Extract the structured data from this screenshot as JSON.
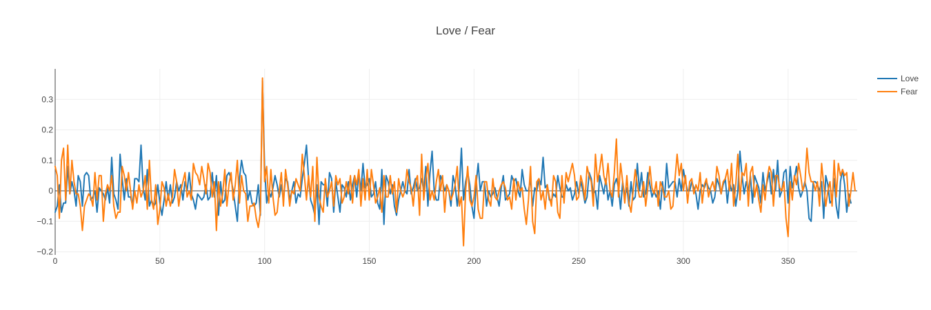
{
  "chart_data": {
    "type": "line",
    "title": "Love / Fear",
    "xlabel": "",
    "ylabel": "",
    "xlim": [
      0,
      383
    ],
    "ylim": [
      -0.21,
      0.4
    ],
    "x_ticks": [
      0,
      50,
      100,
      150,
      200,
      250,
      300,
      350
    ],
    "y_ticks": [
      -0.2,
      -0.1,
      0,
      0.1,
      0.2,
      0.3
    ],
    "y_tick_labels": [
      "−0.2",
      "−0.1",
      "0",
      "0.1",
      "0.2",
      "0.3"
    ],
    "grid": true,
    "legend_position": "top-right",
    "series": [
      {
        "name": "Love",
        "color": "#1f77b4",
        "x_start": 0,
        "x_step": 1,
        "values": [
          -0.07,
          -0.05,
          0.02,
          -0.07,
          -0.04,
          -0.04,
          0.08,
          -0.01,
          0.03,
          0.0,
          -0.05,
          0.05,
          0.03,
          -0.05,
          0.05,
          0.06,
          0.05,
          -0.03,
          -0.02,
          0.0,
          -0.07,
          0.01,
          0.0,
          -0.01,
          -0.03,
          0.01,
          -0.04,
          0.11,
          -0.01,
          -0.03,
          -0.06,
          0.12,
          0.04,
          -0.03,
          0.04,
          -0.02,
          -0.02,
          -0.05,
          0.04,
          0.04,
          0.03,
          0.15,
          0.01,
          -0.03,
          0.07,
          -0.05,
          -0.03,
          -0.05,
          -0.04,
          0.02,
          -0.04,
          -0.08,
          -0.03,
          0.03,
          -0.03,
          0.02,
          -0.04,
          -0.02,
          0.03,
          0.0,
          0.02,
          -0.03,
          0.03,
          0.0,
          0.06,
          -0.01,
          -0.03,
          -0.06,
          -0.01,
          -0.02,
          -0.03,
          -0.02,
          0.02,
          -0.03,
          -0.02,
          0.06,
          -0.02,
          0.05,
          -0.08,
          0.03,
          -0.04,
          -0.03,
          0.05,
          0.06,
          0.04,
          0.0,
          -0.05,
          -0.1,
          0.04,
          0.1,
          0.06,
          0.05,
          -0.03,
          0.0,
          -0.04,
          -0.05,
          -0.04,
          0.02,
          -0.08,
          0.36,
          0.08,
          -0.04,
          0.0,
          -0.02,
          0.01,
          0.05,
          0.02,
          -0.02,
          0.02,
          -0.03,
          0.04,
          0.03,
          -0.03,
          0.0,
          0.03,
          -0.04,
          -0.01,
          -0.02,
          0.04,
          0.09,
          0.15,
          0.04,
          -0.03,
          -0.05,
          -0.08,
          0.02,
          -0.11,
          0.03,
          0.02,
          0.02,
          -0.05,
          0.06,
          0.04,
          -0.07,
          0.03,
          -0.02,
          -0.07,
          0.02,
          0.01,
          -0.02,
          0.03,
          -0.03,
          0.02,
          0.05,
          -0.02,
          0.06,
          0.0,
          0.09,
          0.01,
          0.02,
          0.04,
          -0.02,
          -0.01,
          0.03,
          -0.04,
          -0.06,
          0.07,
          -0.11,
          0.05,
          0.03,
          -0.01,
          0.02,
          -0.05,
          -0.08,
          -0.03,
          0.0,
          0.03,
          0.0,
          -0.01,
          0.07,
          -0.01,
          0.01,
          0.04,
          0.0,
          0.01,
          0.04,
          0.0,
          0.08,
          -0.05,
          0.06,
          0.13,
          0.0,
          -0.03,
          -0.03,
          0.05,
          0.03,
          0.0,
          0.02,
          0.0,
          -0.05,
          0.05,
          0.02,
          -0.05,
          0.01,
          0.14,
          -0.03,
          0.03,
          0.06,
          0.02,
          -0.05,
          -0.09,
          0.02,
          0.09,
          0.0,
          0.03,
          0.03,
          -0.05,
          0.0,
          -0.02,
          -0.01,
          0.01,
          -0.02,
          -0.05,
          0.01,
          0.05,
          -0.03,
          -0.02,
          -0.01,
          0.05,
          0.03,
          0.04,
          0.0,
          -0.02,
          0.07,
          0.02,
          0.0,
          0.0,
          0.04,
          -0.05,
          0.01,
          0.0,
          0.04,
          0.02,
          0.11,
          0.01,
          0.02,
          -0.03,
          -0.03,
          -0.01,
          -0.02,
          0.05,
          0.01,
          -0.02,
          -0.02,
          0.02,
          0.0,
          0.01,
          -0.03,
          -0.01,
          0.03,
          -0.01,
          0.03,
          0.0,
          -0.04,
          -0.02,
          0.06,
          0.04,
          -0.01,
          0.0,
          -0.06,
          0.05,
          0.02,
          -0.01,
          0.04,
          -0.03,
          0.0,
          -0.05,
          0.02,
          0.04,
          0.01,
          -0.06,
          0.03,
          -0.02,
          0.01,
          -0.05,
          0.03,
          -0.03,
          -0.02,
          0.09,
          0.0,
          0.06,
          -0.02,
          -0.01,
          0.06,
          0.02,
          -0.02,
          0.0,
          -0.02,
          0.0,
          -0.06,
          0.03,
          -0.03,
          0.09,
          0.01,
          0.02,
          0.03,
          0.03,
          -0.02,
          0.04,
          0.0,
          0.07,
          0.03,
          0.0,
          0.0,
          0.03,
          0.01,
          -0.01,
          -0.06,
          0.0,
          0.02,
          0.01,
          0.03,
          0.01,
          0.0,
          -0.04,
          -0.02,
          0.04,
          0.02,
          -0.01,
          0.02,
          0.04,
          -0.04,
          0.03,
          0.0,
          0.02,
          -0.05,
          0.0,
          0.13,
          0.05,
          -0.01,
          0.03,
          0.0,
          0.05,
          -0.04,
          0.05,
          0.03,
          0.01,
          -0.04,
          0.06,
          0.0,
          0.03,
          0.06,
          -0.01,
          0.07,
          0.0,
          0.1,
          -0.02,
          0.0,
          0.06,
          0.07,
          -0.04,
          0.08,
          0.01,
          0.04,
          0.08,
          0.01,
          -0.02,
          0.0,
          0.03,
          0.0,
          -0.09,
          -0.1,
          0.03,
          0.03,
          0.02,
          0.0,
          0.03,
          -0.09,
          0.05,
          0.02,
          -0.04,
          -0.03,
          0.04,
          -0.05,
          -0.09,
          0.03,
          0.07,
          0.02,
          -0.07,
          -0.01,
          -0.04
        ]
      },
      {
        "name": "Fear",
        "color": "#ff7f0e",
        "x_start": 0,
        "x_step": 1,
        "values": [
          0.08,
          0.05,
          -0.09,
          0.1,
          0.14,
          -0.03,
          0.15,
          -0.01,
          0.1,
          0.03,
          -0.01,
          -0.01,
          -0.05,
          -0.13,
          -0.05,
          -0.03,
          -0.01,
          -0.02,
          -0.05,
          0.06,
          -0.03,
          0.05,
          0.05,
          -0.1,
          -0.01,
          0.02,
          0.0,
          0.05,
          -0.05,
          -0.09,
          -0.07,
          -0.07,
          0.08,
          0.05,
          0.0,
          0.06,
          0.0,
          -0.06,
          0.0,
          -0.04,
          0.02,
          -0.02,
          0.0,
          0.05,
          -0.06,
          0.1,
          -0.03,
          -0.06,
          0.02,
          -0.11,
          -0.06,
          0.03,
          0.01,
          -0.05,
          -0.01,
          -0.05,
          -0.02,
          0.07,
          0.03,
          -0.05,
          0.0,
          0.03,
          0.06,
          -0.02,
          0.0,
          -0.03,
          0.09,
          0.06,
          0.05,
          0.02,
          0.08,
          0.04,
          -0.01,
          0.09,
          0.06,
          -0.02,
          0.03,
          -0.13,
          0.03,
          -0.05,
          -0.01,
          0.07,
          -0.05,
          0.02,
          0.06,
          -0.03,
          0.02,
          0.1,
          -0.04,
          0.05,
          0.0,
          -0.01,
          -0.1,
          -0.05,
          -0.05,
          -0.04,
          -0.09,
          -0.12,
          -0.07,
          0.37,
          0.03,
          0.08,
          -0.04,
          0.07,
          -0.02,
          -0.08,
          -0.07,
          0.0,
          0.06,
          -0.05,
          0.07,
          0.02,
          -0.05,
          0.0,
          -0.01,
          0.04,
          0.02,
          0.0,
          0.12,
          0.05,
          -0.03,
          0.05,
          -0.02,
          0.08,
          -0.1,
          0.11,
          -0.02,
          -0.05,
          -0.07,
          0.04,
          -0.02,
          0.0,
          0.03,
          -0.05,
          0.05,
          0.02,
          0.04,
          -0.04,
          -0.02,
          0.03,
          -0.01,
          0.05,
          -0.04,
          0.05,
          0.02,
          0.07,
          -0.05,
          0.04,
          -0.03,
          0.07,
          -0.03,
          0.07,
          0.02,
          -0.04,
          -0.02,
          0.01,
          -0.07,
          0.05,
          -0.02,
          -0.02,
          0.05,
          -0.01,
          0.03,
          -0.07,
          0.04,
          0.0,
          -0.02,
          0.0,
          0.07,
          0.03,
          0.01,
          -0.05,
          0.03,
          0.05,
          -0.08,
          0.12,
          -0.03,
          0.04,
          0.09,
          -0.03,
          0.0,
          -0.03,
          0.03,
          0.07,
          0.0,
          0.05,
          -0.07,
          0.02,
          0.0,
          -0.03,
          -0.01,
          0.02,
          0.08,
          -0.05,
          -0.02,
          -0.18,
          0.0,
          0.08,
          -0.03,
          -0.05,
          -0.02,
          0.05,
          -0.06,
          -0.09,
          -0.09,
          0.03,
          0.03,
          -0.03,
          -0.05,
          0.04,
          -0.02,
          -0.03,
          0.0,
          0.02,
          0.03,
          0.01,
          -0.03,
          -0.02,
          -0.06,
          0.04,
          -0.03,
          0.03,
          0.0,
          0.01,
          -0.06,
          -0.11,
          -0.03,
          0.08,
          -0.1,
          -0.14,
          0.03,
          0.04,
          -0.03,
          0.0,
          -0.06,
          0.02,
          -0.02,
          -0.05,
          0.05,
          0.03,
          -0.07,
          -0.09,
          0.05,
          -0.04,
          0.06,
          0.03,
          0.06,
          0.09,
          0.05,
          -0.03,
          -0.02,
          0.05,
          0.02,
          -0.03,
          0.08,
          0.05,
          0.03,
          -0.05,
          0.12,
          0.03,
          0.07,
          0.12,
          0.05,
          0.02,
          0.09,
          0.0,
          -0.02,
          0.06,
          0.17,
          -0.02,
          0.09,
          0.03,
          -0.04,
          0.05,
          -0.04,
          -0.07,
          0.0,
          0.07,
          0.02,
          -0.02,
          -0.02,
          0.03,
          -0.05,
          0.01,
          0.08,
          0.01,
          -0.01,
          0.03,
          -0.05,
          0.03,
          0.01,
          -0.02,
          -0.02,
          0.0,
          -0.06,
          -0.05,
          0.04,
          0.12,
          0.05,
          0.09,
          0.0,
          0.05,
          -0.04,
          0.03,
          0.04,
          -0.01,
          0.02,
          0.0,
          0.06,
          -0.04,
          0.02,
          0.04,
          -0.02,
          0.01,
          0.03,
          0.0,
          0.08,
          0.05,
          -0.01,
          0.03,
          0.04,
          0.07,
          0.0,
          0.09,
          -0.05,
          0.02,
          0.12,
          -0.03,
          0.06,
          0.05,
          0.09,
          -0.05,
          0.06,
          0.08,
          -0.02,
          0.02,
          -0.03,
          -0.07,
          0.02,
          -0.03,
          0.04,
          0.08,
          0.06,
          -0.05,
          0.05,
          0.05,
          0.01,
          0.0,
          0.03,
          -0.09,
          -0.15,
          0.03,
          -0.03,
          0.05,
          0.02,
          0.09,
          0.05,
          0.0,
          0.02,
          0.14,
          0.06,
          0.03,
          0.03,
          0.0,
          0.03,
          -0.05,
          0.09,
          0.02,
          -0.05,
          0.0,
          0.03,
          -0.05,
          0.1,
          -0.02,
          0.09,
          0.05,
          0.07,
          0.05,
          0.06,
          -0.05,
          0.0,
          0.06,
          0.0
        ]
      }
    ]
  }
}
